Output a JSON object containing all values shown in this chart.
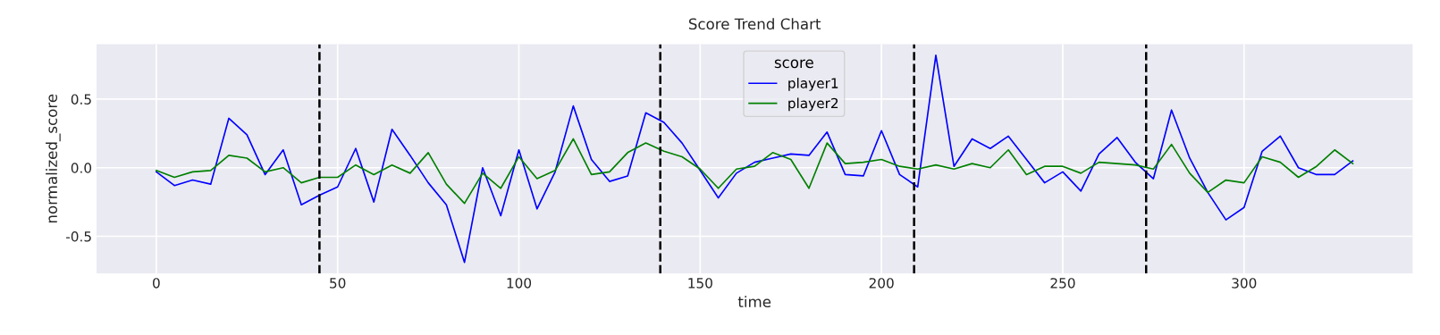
{
  "chart_data": {
    "type": "line",
    "title": "Score Trend Chart",
    "xlabel": "time",
    "ylabel": "normalized_score",
    "legend_title": "score",
    "x": [
      0,
      5,
      10,
      15,
      20,
      25,
      30,
      35,
      40,
      45,
      50,
      55,
      60,
      65,
      70,
      75,
      80,
      85,
      90,
      95,
      100,
      105,
      110,
      115,
      120,
      125,
      130,
      135,
      140,
      145,
      150,
      155,
      160,
      165,
      170,
      175,
      180,
      185,
      190,
      195,
      200,
      205,
      210,
      215,
      220,
      225,
      230,
      235,
      240,
      245,
      250,
      255,
      260,
      265,
      270,
      275,
      280,
      285,
      290,
      295,
      300,
      305,
      310,
      315,
      320,
      325,
      330
    ],
    "series": [
      {
        "name": "player1",
        "color": "#0000ff",
        "values": [
          -0.03,
          -0.13,
          -0.09,
          -0.12,
          0.36,
          0.24,
          -0.05,
          0.13,
          -0.27,
          -0.2,
          -0.14,
          0.14,
          -0.25,
          0.28,
          0.09,
          -0.11,
          -0.27,
          -0.69,
          0.0,
          -0.35,
          0.13,
          -0.3,
          -0.03,
          0.45,
          0.06,
          -0.1,
          -0.06,
          0.4,
          0.33,
          0.18,
          -0.02,
          -0.22,
          -0.04,
          0.04,
          0.07,
          0.1,
          0.09,
          0.26,
          -0.05,
          -0.06,
          0.27,
          -0.05,
          -0.14,
          0.82,
          0.01,
          0.21,
          0.14,
          0.23,
          0.06,
          -0.11,
          -0.03,
          -0.17,
          0.1,
          0.22,
          0.04,
          -0.08,
          0.42,
          0.07,
          -0.18,
          -0.38,
          -0.29,
          0.12,
          0.23,
          0.0,
          -0.05,
          -0.05,
          0.05
        ]
      },
      {
        "name": "player2",
        "color": "#008000",
        "values": [
          -0.02,
          -0.07,
          -0.03,
          -0.02,
          0.09,
          0.07,
          -0.03,
          0.0,
          -0.11,
          -0.07,
          -0.07,
          0.02,
          -0.05,
          0.02,
          -0.04,
          0.11,
          -0.12,
          -0.26,
          -0.04,
          -0.15,
          0.08,
          -0.08,
          -0.02,
          0.21,
          -0.05,
          -0.03,
          0.11,
          0.18,
          0.12,
          0.08,
          -0.01,
          -0.15,
          -0.01,
          0.01,
          0.11,
          0.06,
          -0.15,
          0.18,
          0.03,
          0.04,
          0.06,
          0.01,
          -0.01,
          0.02,
          -0.01,
          0.03,
          0.0,
          0.13,
          -0.05,
          0.01,
          0.01,
          -0.04,
          0.04,
          0.03,
          0.02,
          -0.01,
          0.17,
          -0.04,
          -0.18,
          -0.09,
          -0.11,
          0.08,
          0.04,
          -0.07,
          0.01,
          0.13,
          0.03
        ]
      }
    ],
    "ref_lines": [
      {
        "axis": "x",
        "value": 45,
        "color": "#000000",
        "line_style": "dashed"
      },
      {
        "axis": "x",
        "value": 139,
        "color": "#000000",
        "line_style": "dashed"
      },
      {
        "axis": "x",
        "value": 209,
        "color": "#000000",
        "line_style": "dashed"
      },
      {
        "axis": "x",
        "value": 273,
        "color": "#000000",
        "line_style": "dashed"
      }
    ],
    "xlim": [
      -16.5,
      346.5
    ],
    "xticks": [
      0,
      50,
      100,
      150,
      200,
      250,
      300
    ],
    "ylim": [
      -0.77,
      0.9
    ],
    "yticks": [
      -0.5,
      {
        "value": 0,
        "label": "0.0"
      },
      0.5
    ],
    "grid": true,
    "legend": "top",
    "marker": "none",
    "line_style": "solid"
  }
}
